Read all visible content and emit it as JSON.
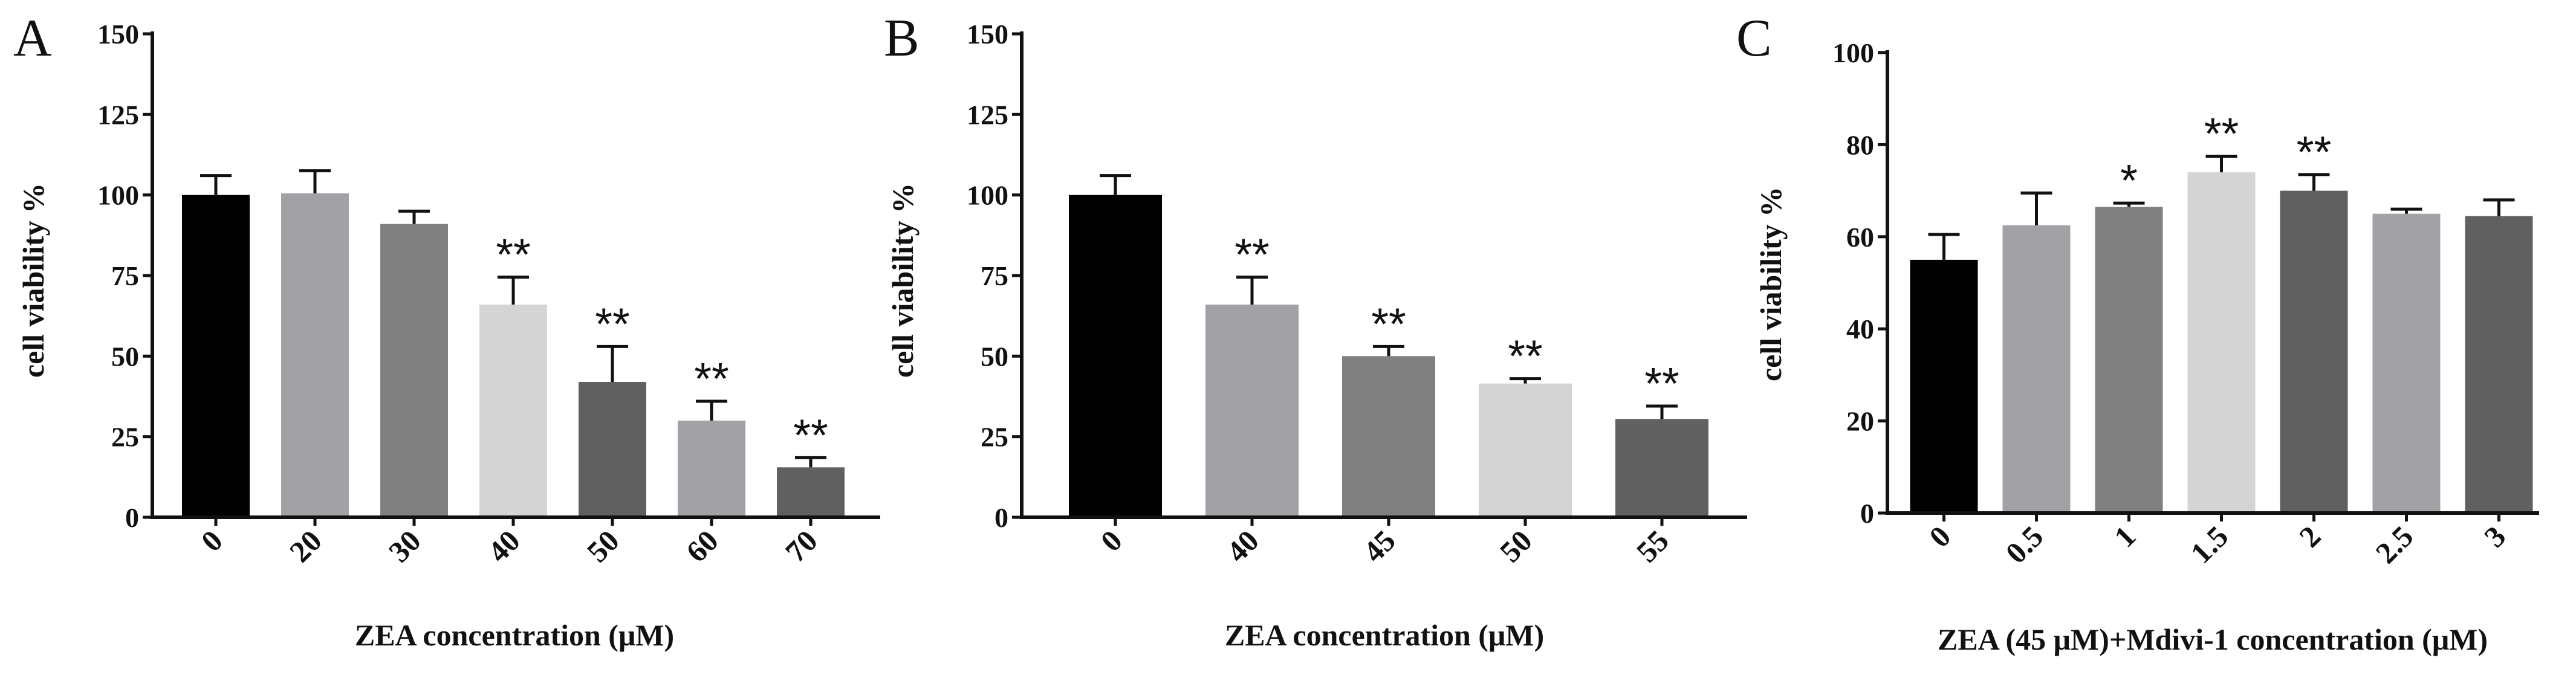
{
  "chart_data": [
    {
      "panel": "A",
      "type": "bar",
      "title": "",
      "xlabel": "ZEA concentration (μM)",
      "ylabel": "cell viability %",
      "ylim": [
        0,
        150
      ],
      "yticks": [
        "0",
        "25",
        "50",
        "75",
        "100",
        "125",
        "150"
      ],
      "categories": [
        "0",
        "20",
        "30",
        "40",
        "50",
        "60",
        "70"
      ],
      "values": [
        100,
        100.5,
        91,
        66,
        42,
        30,
        15.5
      ],
      "errors": [
        6,
        7,
        4,
        8.5,
        11,
        6,
        3
      ],
      "significance": [
        "",
        "",
        "",
        "**",
        "**",
        "**",
        "**"
      ],
      "colors": [
        "#000000",
        "#a1a1a6",
        "#808080",
        "#d4d4d4",
        "#606060",
        "#a1a1a6",
        "#606060"
      ]
    },
    {
      "panel": "B",
      "type": "bar",
      "title": "",
      "xlabel": "ZEA concentration (μM)",
      "ylabel": "cell viability %",
      "ylim": [
        0,
        150
      ],
      "yticks": [
        "0",
        "25",
        "50",
        "75",
        "100",
        "125",
        "150"
      ],
      "categories": [
        "0",
        "40",
        "45",
        "50",
        "55"
      ],
      "values": [
        100,
        66,
        50,
        41.5,
        30.5
      ],
      "errors": [
        6,
        8.5,
        3,
        1.5,
        4
      ],
      "significance": [
        "",
        "**",
        "**",
        "**",
        "**"
      ],
      "colors": [
        "#000000",
        "#a1a1a6",
        "#808080",
        "#d4d4d4",
        "#606060"
      ]
    },
    {
      "panel": "C",
      "type": "bar",
      "title": "",
      "xlabel": "ZEA (45 μM)+Mdivi-1 concentration (μM)",
      "ylabel": "cell viability %",
      "ylim": [
        0,
        100
      ],
      "yticks": [
        "0",
        "20",
        "40",
        "60",
        "80",
        "100"
      ],
      "categories": [
        "0",
        "0.5",
        "1",
        "1.5",
        "2",
        "2.5",
        "3"
      ],
      "values": [
        55,
        62.5,
        66.5,
        74,
        70,
        65,
        64.5
      ],
      "errors": [
        5.5,
        7,
        0.8,
        3.5,
        3.5,
        1,
        3.5
      ],
      "significance": [
        "",
        "",
        "*",
        "**",
        "**",
        "",
        ""
      ],
      "colors": [
        "#000000",
        "#a1a1a6",
        "#808080",
        "#d4d4d4",
        "#606060",
        "#a1a1a6",
        "#606060"
      ]
    }
  ]
}
